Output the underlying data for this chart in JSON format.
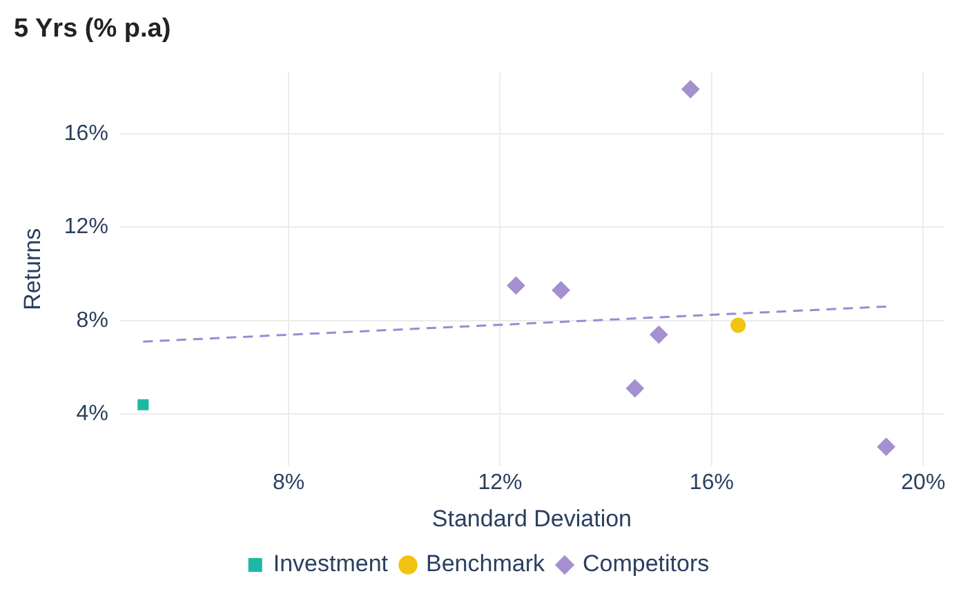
{
  "chart_data": {
    "type": "scatter",
    "title": "5 Yrs (% p.a)",
    "xlabel": "Standard Deviation",
    "ylabel": "Returns",
    "xlim": [
      4.8,
      20.4
    ],
    "ylim": [
      1.8,
      18.6
    ],
    "xticks": [
      {
        "value": 8,
        "label": "8%"
      },
      {
        "value": 12,
        "label": "12%"
      },
      {
        "value": 16,
        "label": "16%"
      },
      {
        "value": 20,
        "label": "20%"
      }
    ],
    "yticks": [
      {
        "value": 4,
        "label": "4%"
      },
      {
        "value": 8,
        "label": "8%"
      },
      {
        "value": 12,
        "label": "12%"
      },
      {
        "value": 16,
        "label": "16%"
      }
    ],
    "grid": true,
    "legend": "bottom",
    "series": [
      {
        "name": "Investment",
        "marker": "square",
        "color": "#1db9a4",
        "x": [
          5.25
        ],
        "values": [
          4.4
        ]
      },
      {
        "name": "Benchmark",
        "marker": "circle",
        "color": "#f2c40f",
        "x": [
          16.5
        ],
        "values": [
          7.8
        ]
      },
      {
        "name": "Competitors",
        "marker": "diamond",
        "color": "#a590cf",
        "x": [
          15.6,
          12.3,
          13.15,
          15.0,
          14.55,
          19.3
        ],
        "values": [
          17.9,
          9.5,
          9.3,
          7.4,
          5.1,
          2.6
        ]
      },
      {
        "type": "line",
        "line_style": "dashed",
        "marker": "none",
        "color": "#9a8ad4",
        "x": [
          5.25,
          19.3
        ],
        "values": [
          7.1,
          8.6
        ]
      }
    ]
  }
}
